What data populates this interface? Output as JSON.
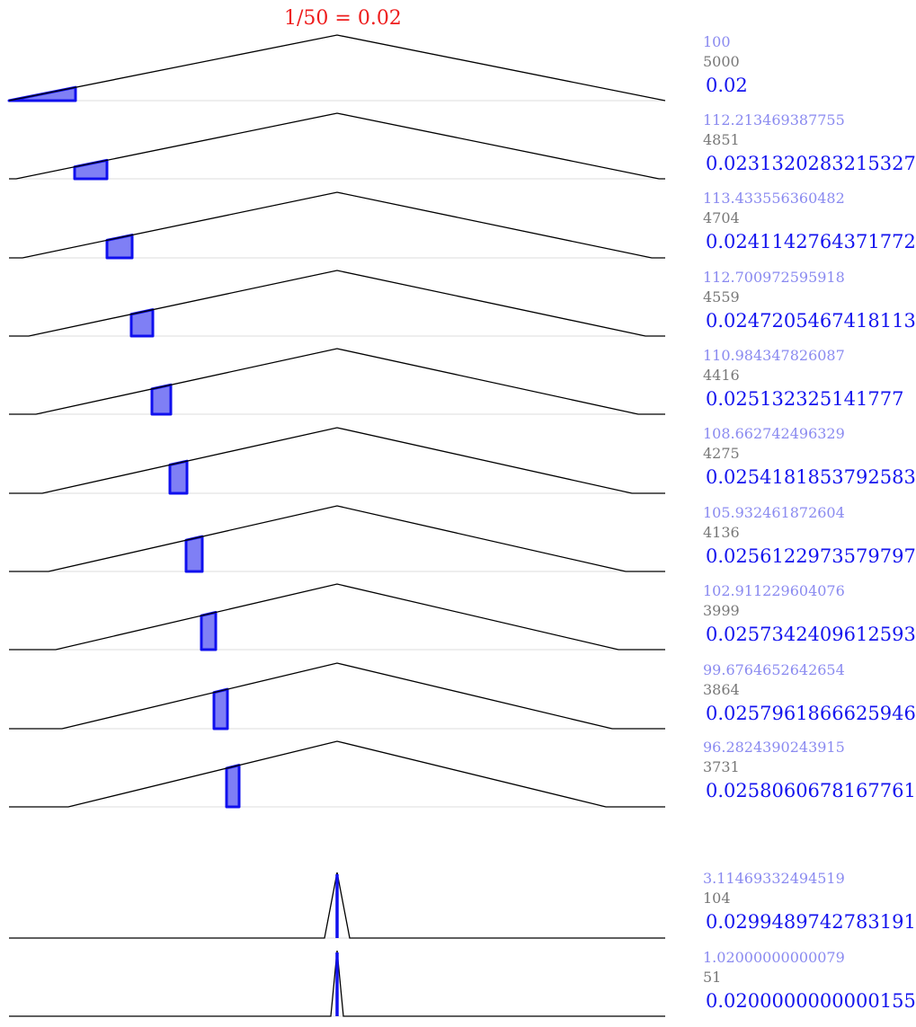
{
  "title": "1/50 = 0.02",
  "colors": {
    "title": "#ee1c1c",
    "value_a": "#8a8af0",
    "value_b": "#777777",
    "value_c": "#1414ee",
    "shape_fill": "#7f7ff5",
    "shape_stroke": "#1010ee",
    "curve": "#000000",
    "baseline": "#dddddd"
  },
  "panels": [
    {
      "a": "100",
      "b": "5000",
      "c": "0.02"
    },
    {
      "a": "112.213469387755",
      "b": "4851",
      "c": "0.0231320283215327"
    },
    {
      "a": "113.433556360482",
      "b": "4704",
      "c": "0.0241142764371772"
    },
    {
      "a": "112.700972595918",
      "b": "4559",
      "c": "0.0247205467418113"
    },
    {
      "a": "110.984347826087",
      "b": "4416",
      "c": "0.025132325141777"
    },
    {
      "a": "108.662742496329",
      "b": "4275",
      "c": "0.0254181853792583"
    },
    {
      "a": "105.932461872604",
      "b": "4136",
      "c": "0.0256122973579797"
    },
    {
      "a": "102.911229604076",
      "b": "3999",
      "c": "0.0257342409612593"
    },
    {
      "a": "99.6764652642654",
      "b": "3864",
      "c": "0.0257961866625946"
    },
    {
      "a": "96.2824390243915",
      "b": "3731",
      "c": "0.0258060678167761"
    },
    {
      "a": "3.11469332494519",
      "b": "104",
      "c": "0.0299489742783191"
    },
    {
      "a": "1.02000000000079",
      "b": "51",
      "c": "0.0200000000000155"
    }
  ]
}
